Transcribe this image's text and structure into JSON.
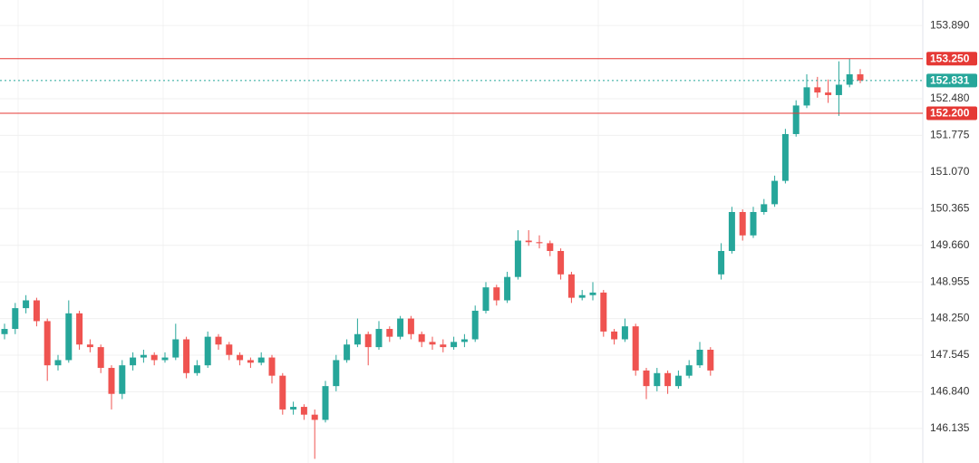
{
  "chart_data": {
    "type": "candlestick",
    "up_color": "#26a69a",
    "down_color": "#ef5350",
    "open": [
      147.95,
      148.05,
      148.45,
      148.6,
      148.2,
      147.35,
      147.45,
      148.35,
      147.75,
      147.7,
      147.3,
      146.8,
      147.35,
      147.5,
      147.55,
      147.45,
      147.5,
      147.85,
      147.2,
      147.35,
      147.9,
      147.75,
      147.55,
      147.45,
      147.4,
      147.5,
      147.15,
      146.5,
      146.55,
      146.4,
      146.3,
      146.95,
      147.45,
      147.75,
      147.95,
      147.7,
      148.05,
      147.9,
      148.25,
      147.95,
      147.8,
      147.75,
      147.7,
      147.8,
      147.85,
      148.4,
      148.85,
      148.6,
      149.05,
      149.75,
      149.72,
      149.7,
      149.55,
      149.1,
      148.65,
      148.7,
      148.75,
      148.0,
      147.85,
      148.1,
      147.25,
      146.95,
      147.2,
      146.95,
      147.15,
      147.35,
      147.65,
      149.1,
      149.55,
      150.3,
      149.85,
      150.3,
      150.45,
      150.9,
      151.8,
      152.35,
      152.7,
      152.6,
      152.55,
      152.75,
      152.95
    ],
    "high": [
      148.15,
      148.55,
      148.7,
      148.65,
      148.25,
      147.55,
      148.6,
      148.4,
      147.85,
      147.75,
      147.35,
      147.45,
      147.6,
      147.65,
      147.6,
      147.6,
      148.15,
      147.9,
      147.45,
      148.0,
      147.95,
      147.8,
      147.6,
      147.5,
      147.6,
      147.55,
      147.2,
      146.65,
      146.6,
      146.5,
      147.05,
      147.55,
      147.85,
      148.25,
      148.0,
      148.2,
      148.1,
      148.3,
      148.3,
      148.0,
      147.9,
      147.85,
      147.9,
      147.95,
      148.5,
      148.95,
      148.9,
      149.15,
      149.95,
      149.95,
      149.85,
      149.75,
      149.6,
      149.15,
      148.8,
      148.95,
      148.8,
      148.05,
      148.25,
      148.15,
      147.3,
      147.3,
      147.25,
      147.25,
      147.45,
      147.8,
      147.7,
      149.7,
      150.4,
      150.35,
      150.4,
      150.55,
      151.0,
      151.9,
      152.45,
      152.95,
      152.9,
      152.85,
      153.2,
      153.25,
      153.05
    ],
    "low": [
      147.85,
      147.95,
      148.35,
      148.1,
      147.05,
      147.25,
      147.4,
      147.65,
      147.6,
      147.2,
      146.5,
      146.7,
      147.25,
      147.4,
      147.35,
      147.4,
      147.45,
      147.1,
      147.15,
      147.3,
      147.65,
      147.45,
      147.35,
      147.3,
      147.35,
      147.0,
      146.4,
      146.4,
      146.3,
      145.55,
      146.25,
      146.85,
      147.4,
      147.7,
      147.35,
      147.65,
      147.8,
      147.85,
      147.85,
      147.7,
      147.65,
      147.6,
      147.65,
      147.7,
      147.8,
      148.35,
      148.5,
      148.55,
      149.0,
      149.65,
      149.6,
      149.45,
      149.0,
      148.55,
      148.6,
      148.6,
      147.9,
      147.75,
      147.8,
      147.15,
      146.7,
      146.85,
      146.8,
      146.9,
      147.1,
      147.3,
      147.15,
      149.0,
      149.5,
      149.75,
      149.8,
      150.25,
      150.4,
      150.85,
      151.75,
      152.3,
      152.5,
      152.4,
      152.15,
      152.7,
      152.78
    ],
    "close": [
      148.05,
      148.45,
      148.6,
      148.2,
      147.35,
      147.45,
      148.35,
      147.75,
      147.7,
      147.3,
      146.8,
      147.35,
      147.5,
      147.55,
      147.45,
      147.5,
      147.85,
      147.2,
      147.35,
      147.9,
      147.75,
      147.55,
      147.45,
      147.4,
      147.5,
      147.15,
      146.5,
      146.55,
      146.4,
      146.3,
      146.95,
      147.45,
      147.75,
      147.95,
      147.7,
      148.05,
      147.9,
      148.25,
      147.95,
      147.8,
      147.75,
      147.7,
      147.8,
      147.85,
      148.4,
      148.85,
      148.6,
      149.05,
      149.75,
      149.72,
      149.7,
      149.55,
      149.1,
      148.65,
      148.7,
      148.75,
      148.0,
      147.85,
      148.1,
      147.25,
      146.95,
      147.2,
      146.95,
      147.15,
      147.35,
      147.65,
      147.25,
      149.55,
      150.3,
      149.85,
      150.3,
      150.45,
      150.9,
      151.8,
      152.35,
      152.7,
      152.6,
      152.55,
      152.75,
      152.95,
      152.831
    ],
    "ylim": [
      145.47,
      154.38
    ],
    "yticks": [
      {
        "value": 153.89,
        "label": "153.890"
      },
      {
        "value": 152.48,
        "label": "152.480"
      },
      151.775,
      {
        "value": 151.07,
        "label": "151.070"
      },
      150.365,
      {
        "value": 149.66,
        "label": "149.660"
      },
      148.955,
      {
        "value": 148.25,
        "label": "148.250"
      },
      147.545,
      {
        "value": 146.84,
        "label": "146.840"
      },
      146.135
    ],
    "grid": true,
    "price_lines": [
      {
        "value": 153.25,
        "label": "153.250",
        "color": "#e53935",
        "style": "solid"
      },
      {
        "value": 152.831,
        "label": "152.831",
        "color": "#26a69a",
        "style": "dotted"
      },
      {
        "value": 152.2,
        "label": "152.200",
        "color": "#e53935",
        "style": "solid"
      }
    ]
  }
}
